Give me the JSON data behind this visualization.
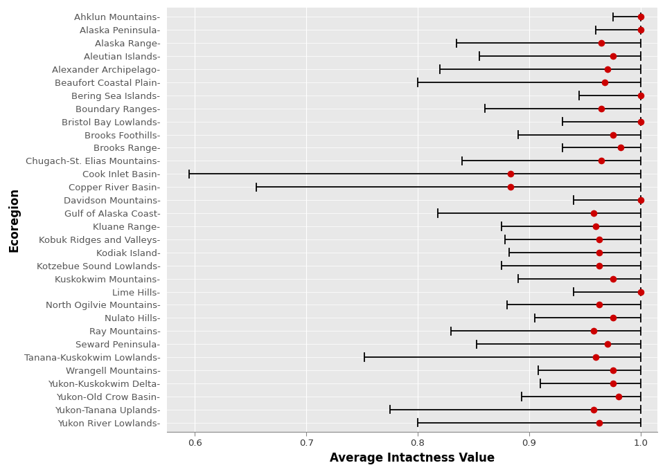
{
  "ecoregions": [
    "Ahklun Mountains",
    "Alaska Peninsula",
    "Alaska Range",
    "Aleutian Islands",
    "Alexander Archipelago",
    "Beaufort Coastal Plain",
    "Bering Sea Islands",
    "Boundary Ranges",
    "Bristol Bay Lowlands",
    "Brooks Foothills",
    "Brooks Range",
    "Chugach-St. Elias Mountains",
    "Cook Inlet Basin",
    "Copper River Basin",
    "Davidson Mountains",
    "Gulf of Alaska Coast",
    "Kluane Range",
    "Kobuk Ridges and Valleys",
    "Kodiak Island",
    "Kotzebue Sound Lowlands",
    "Kuskokwim Mountains",
    "Lime Hills",
    "North Ogilvie Mountains",
    "Nulato Hills",
    "Ray Mountains",
    "Seward Peninsula",
    "Tanana-Kuskokwim Lowlands",
    "Wrangell Mountains",
    "Yukon-Kuskokwim Delta",
    "Yukon-Old Crow Basin",
    "Yukon-Tanana Uplands",
    "Yukon River Lowlands"
  ],
  "mean": [
    1.0,
    1.0,
    0.965,
    0.975,
    0.97,
    0.968,
    1.0,
    0.965,
    1.0,
    0.975,
    0.982,
    0.965,
    0.883,
    0.883,
    1.0,
    0.958,
    0.96,
    0.963,
    0.963,
    0.963,
    0.975,
    1.0,
    0.963,
    0.975,
    0.958,
    0.97,
    0.96,
    0.975,
    0.975,
    0.98,
    0.958,
    0.963
  ],
  "low": [
    0.975,
    0.96,
    0.835,
    0.855,
    0.82,
    0.8,
    0.945,
    0.86,
    0.93,
    0.89,
    0.93,
    0.84,
    0.595,
    0.655,
    0.94,
    0.818,
    0.875,
    0.878,
    0.882,
    0.875,
    0.89,
    0.94,
    0.88,
    0.905,
    0.83,
    0.853,
    0.752,
    0.908,
    0.91,
    0.893,
    0.775,
    0.8
  ],
  "high": [
    1.0,
    1.0,
    1.0,
    1.0,
    1.0,
    1.0,
    1.0,
    1.0,
    1.0,
    1.0,
    1.0,
    1.0,
    1.0,
    1.0,
    1.0,
    1.0,
    1.0,
    1.0,
    1.0,
    1.0,
    1.0,
    1.0,
    1.0,
    1.0,
    1.0,
    1.0,
    1.0,
    1.0,
    1.0,
    1.0,
    1.0,
    1.0
  ],
  "point_color": "#cc0000",
  "line_color": "#000000",
  "bg_color": "#e8e8e8",
  "panel_bg": "#e8e8e8",
  "xlabel": "Average Intactness Value",
  "ylabel": "Ecoregion",
  "xlim": [
    0.575,
    1.015
  ],
  "xticks": [
    0.6,
    0.7,
    0.8,
    0.9,
    1.0
  ],
  "axis_label_fontsize": 12,
  "tick_fontsize": 9.5,
  "ylabel_fontsize": 12
}
